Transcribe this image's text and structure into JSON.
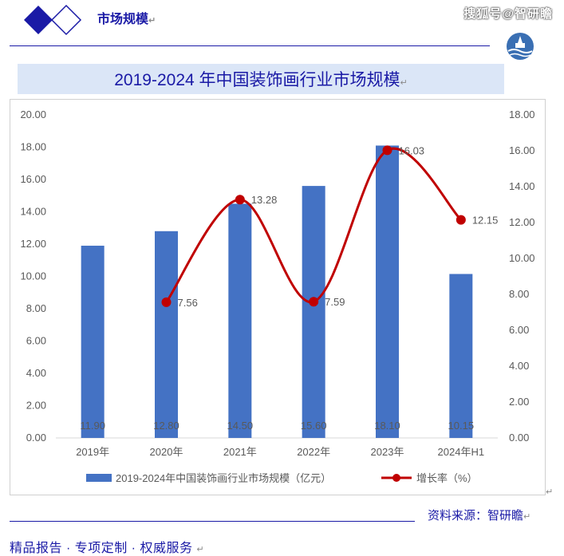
{
  "header": {
    "section_title": "市场规模",
    "watermark": "搜狐号@智研瞻"
  },
  "banner": {
    "title": "2019-2024 年中国装饰画行业市场规模"
  },
  "chart_data": {
    "type": "bar",
    "categories": [
      "2019年",
      "2020年",
      "2021年",
      "2022年",
      "2023年",
      "2024年H1"
    ],
    "series": [
      {
        "name": "2019-2024年中国装饰画行业市场规模（亿元）",
        "type": "bar",
        "axis": "left",
        "values": [
          11.9,
          12.8,
          14.5,
          15.6,
          18.1,
          10.15
        ],
        "labels": [
          "11.90",
          "12.80",
          "14.50",
          "15.60",
          "18.10",
          "10.15"
        ],
        "color": "#4472c4"
      },
      {
        "name": "增长率（%）",
        "type": "line",
        "axis": "right",
        "values": [
          null,
          7.56,
          13.28,
          7.59,
          16.03,
          12.15
        ],
        "labels": [
          "",
          "7.56",
          "13.28",
          "7.59",
          "16.03",
          "12.15"
        ],
        "color": "#c00000"
      }
    ],
    "y_left": {
      "min": 0,
      "max": 20,
      "step": 2,
      "ticks": [
        "0.00",
        "2.00",
        "4.00",
        "6.00",
        "8.00",
        "10.00",
        "12.00",
        "14.00",
        "16.00",
        "18.00",
        "20.00"
      ]
    },
    "y_right": {
      "min": 0,
      "max": 18,
      "step": 2,
      "ticks": [
        "0.00",
        "2.00",
        "4.00",
        "6.00",
        "8.00",
        "10.00",
        "12.00",
        "14.00",
        "16.00",
        "18.00"
      ]
    },
    "grid": false,
    "legend_position": "bottom",
    "line_style": "smooth"
  },
  "footer": {
    "source": "资料来源：智研瞻",
    "tagline": "精品报告 · 专项定制 · 权威服务"
  },
  "colors": {
    "brand_blue": "#1a1aa6",
    "banner_bg": "#dbe6f7",
    "bar": "#4472c4",
    "line": "#c00000"
  },
  "icons": {
    "logo_left": "double-diamond-icon",
    "logo_right": "bridge-emblem-icon"
  }
}
